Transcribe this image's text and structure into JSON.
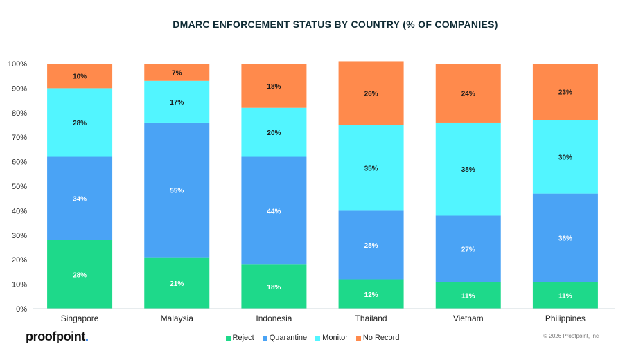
{
  "chart_data": {
    "type": "bar",
    "stacked": true,
    "title": "DMARC ENFORCEMENT STATUS BY COUNTRY (% OF COMPANIES)",
    "categories": [
      "Singapore",
      "Malaysia",
      "Indonesia",
      "Thailand",
      "Vietnam",
      "Philippines"
    ],
    "series": [
      {
        "name": "Reject",
        "color": "#1ed98a",
        "values": [
          28,
          21,
          18,
          12,
          11,
          11
        ]
      },
      {
        "name": "Quarantine",
        "color": "#4aa3f5",
        "values": [
          34,
          55,
          44,
          28,
          27,
          36
        ]
      },
      {
        "name": "Monitor",
        "color": "#52f5ff",
        "values": [
          28,
          17,
          20,
          35,
          38,
          30
        ]
      },
      {
        "name": "No Record",
        "color": "#ff8a4c",
        "values": [
          10,
          7,
          18,
          26,
          24,
          23
        ]
      }
    ],
    "ylim": [
      0,
      100
    ],
    "yticks": [
      "0%",
      "10%",
      "20%",
      "30%",
      "40%",
      "50%",
      "60%",
      "70%",
      "80%",
      "90%",
      "100%"
    ],
    "value_suffix": "%",
    "grid": false,
    "legend_position": "bottom"
  },
  "footer": {
    "brand": "proofpoint",
    "brand_dot": ".",
    "copyright": "© 2026 Proofpoint, Inc"
  }
}
